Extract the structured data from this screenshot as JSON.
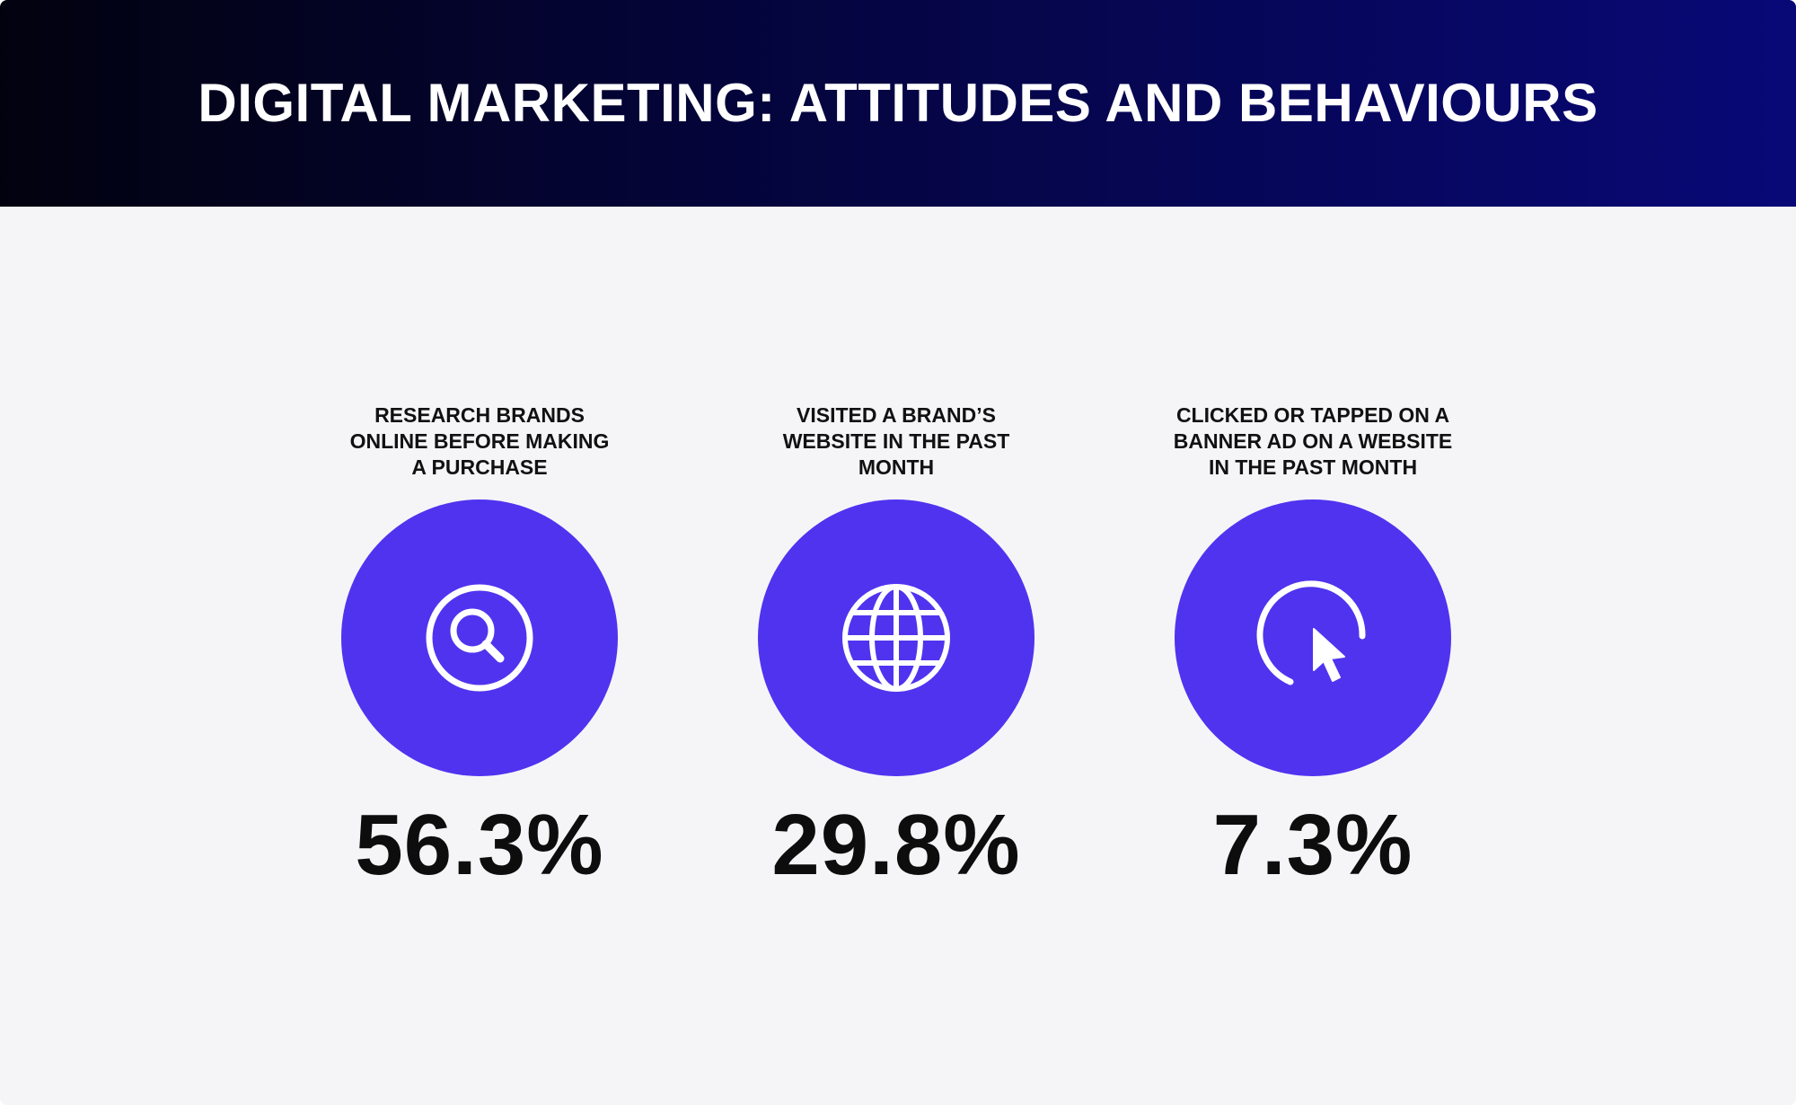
{
  "header": {
    "title": "DIGITAL MARKETING: ATTITUDES AND BEHAVIOURS"
  },
  "theme": {
    "accent": "#5033ef",
    "icon_color": "#ffffff"
  },
  "stats": [
    {
      "label": "RESEARCH BRANDS\nONLINE BEFORE MAKING\nA PURCHASE",
      "value": "56.3%",
      "icon": "search-icon"
    },
    {
      "label": "VISITED A BRAND’S\nWEBSITE IN THE PAST\nMONTH",
      "value": "29.8%",
      "icon": "globe-icon"
    },
    {
      "label": "CLICKED OR TAPPED ON A\nBANNER AD ON A WEBSITE\nIN THE PAST MONTH",
      "value": "7.3%",
      "icon": "cursor-click-icon"
    }
  ]
}
